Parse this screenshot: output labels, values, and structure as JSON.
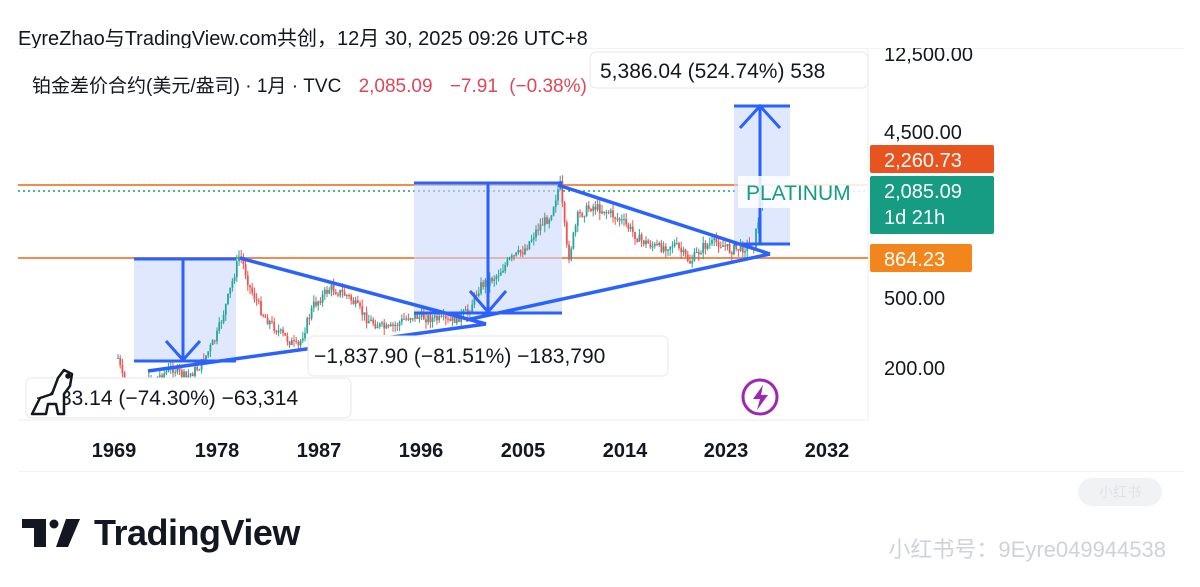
{
  "header": {
    "text": "EyreZhao与TradingView.com共创，12月 30, 2025 09:26 UTC+8"
  },
  "chart_data": {
    "type": "candlestick",
    "symbol_line": {
      "symbol": "铂金差价合约(美元/盎司)",
      "interval": "1月",
      "source": "TVC",
      "price": "2,085.09",
      "change": "−7.91",
      "change_pct": "(−0.38%)"
    },
    "x_ticks": [
      "1969",
      "1978",
      "1987",
      "1996",
      "2005",
      "2014",
      "2023",
      "2032"
    ],
    "y_ticks": [
      "12,500.00",
      "4,500.00",
      "500.00",
      "200.00"
    ],
    "y_scale": "log",
    "price_labels": [
      {
        "text": "2,260.73",
        "color": "#e8541f"
      },
      {
        "text": "2,085.09",
        "sub": "1d 21h",
        "color": "#169c83"
      },
      {
        "text": "864.23",
        "color": "#f2861d"
      }
    ],
    "levels": [
      {
        "value": 2260.73,
        "color": "#f28c4c",
        "style": "solid"
      },
      {
        "value": 2085.09,
        "color": "#169c83",
        "style": "dotted"
      },
      {
        "value": 864.23,
        "color": "#f28c4c",
        "style": "solid"
      }
    ],
    "measurements": [
      {
        "text": "−633.14 (−74.30%) −63,314"
      },
      {
        "text": "−1,837.90 (−81.51%) −183,790"
      },
      {
        "text": "5,386.04 (524.74%) 538"
      }
    ],
    "annotation_label": "PLATINUM",
    "accent": "#2962ff"
  },
  "brand": {
    "name": "TradingView",
    "logo_text": "TV"
  },
  "watermark": {
    "text": "小红书号：9Eyre049944538"
  },
  "watermark_badge": {
    "text": "小红书"
  }
}
